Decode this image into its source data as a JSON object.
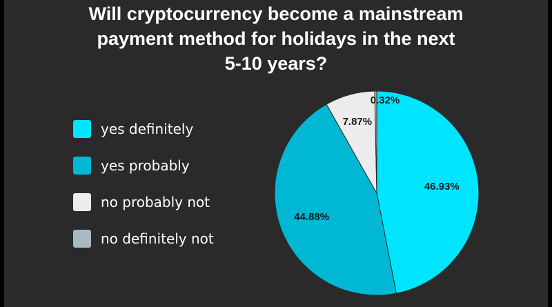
{
  "chart_data": {
    "type": "pie",
    "title_lines": [
      "Will cryptocurrency become a mainstream",
      "payment method for holidays in the next",
      "5-10 years?"
    ],
    "legend_placement": "left",
    "slices": [
      {
        "label": "yes definitely",
        "value": 46.93,
        "display": "46.93%",
        "color": "#00e5ff"
      },
      {
        "label": "yes probably",
        "value": 44.88,
        "display": "44.88%",
        "color": "#00b8d4"
      },
      {
        "label": "no probably not",
        "value": 7.87,
        "display": "7.87%",
        "color": "#ececec"
      },
      {
        "label": "no definitely not",
        "value": 0.32,
        "display": "0.32%",
        "color": "#a9b9c2"
      }
    ]
  },
  "colors": {
    "background": "#2a2a2a",
    "outer": "#000000",
    "text": "#ffffff"
  }
}
